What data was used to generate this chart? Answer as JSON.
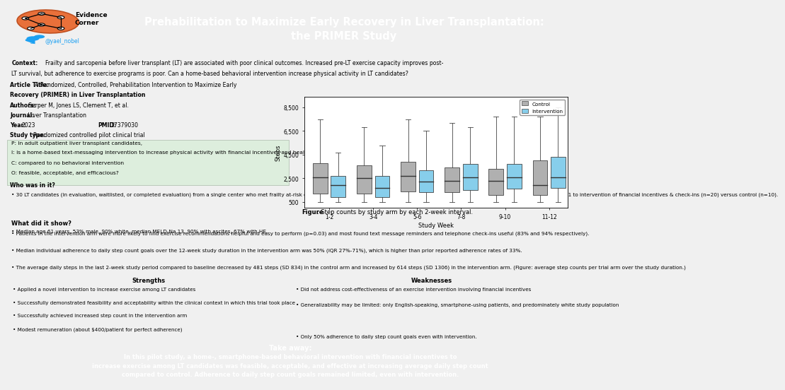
{
  "title": "Prehabilitation to Maximize Early Recovery in Liver Transplantation:\nthe PRIMER Study",
  "header_bg": "#2e6b8a",
  "context_text": "Context: Frailty and sarcopenia before liver transplant (LT) are associated with poor clinical outcomes. Increased pre-LT exercise capacity improves post-LT survival, but adherence to exercise programs is poor. Can a home-based behavioral intervention increase physical activity in LT candidates?",
  "pico_p": "P: In adult outpatient liver transplant candidates,",
  "pico_i": "I: is a home-based text-messaging intervention to increase physical activity with financial incentives and health engagement messages",
  "pico_c": "C: compared to no behavioral intervention",
  "pico_o": "O: feasible, acceptable, and efficacious?",
  "who_header": "Who was in it?",
  "who_bullets": [
    "30 LT candidates (in evaluation, waitlisted, or completed evaluation) from a single center who met frailty at-risk criteria, were English-speaking,  were smart phone users and had a MELD-Na ≤ 25 were randomized 2:1 to intervention of financial incentives & check-ins (n=20) versus control (n=10).",
    "Median age 61 years, 53% male, 90% white, median MELD-Na 13, 90% with ascites, 67% with HE."
  ],
  "what_header": "What did it show?",
  "what_bullets": [
    "Patients in the intervention arm were more likely to find exercise recommendations helpful and easy to perform (p=0.03) and most found text message reminders and telephone check-ins useful (83% and 94% respectively).",
    "Median individual adherence to daily step count goals over the 12-week study duration in the intervention arm was 50% (IQR 27%-71%), which is higher than prior reported adherence rates of 33%.",
    "The average daily steps in the last 2-week study period compared to baseline decreased by 481 steps (SD 834) in the control arm and increased by 614 steps (SD 1306) in the intervention arm. (Figure: average step counts per trial arm over the study duration.)"
  ],
  "strengths_header": "Strengths",
  "strengths_bullets": [
    "Applied a novel intervention to increase exercise among LT candidates",
    "Successfully demonstrated feasibility and acceptability within the clinical context in which this trial took place",
    "Successfully achieved increased step count in the intervention arm",
    "Modest remuneration (about $400/patient for perfect adherence)"
  ],
  "weaknesses_header": "Weaknesses",
  "weaknesses_bullets": [
    "Did not address cost-effectiveness of an exercise intervention involving financial incentives",
    "Generalizability may be limited: only English-speaking, smartphone-using patients, and predominately white study population",
    "Only 50% adherence to daily step count goals even with intervention."
  ],
  "takeaway_header": "Take away:",
  "takeaway_text": "In this pilot study, a home-, smartphone-based behavioral intervention with financial incentives to\nincrease exercise among LT candidates was feasible, acceptable, and effective at increasing average daily step count\ncompared to control. Adherence to daily step count goals remained limited, even with intervention.",
  "takeaway_bg": "#2e6b8a",
  "figure_caption_bold": "Figure",
  "figure_caption_rest": ": Step counts by study arm by each 2-week interval.",
  "box_weeks": [
    "1-2",
    "3-4",
    "5-6",
    "7-8",
    "9-10",
    "11-12"
  ],
  "control_boxes": {
    "whisker_low": [
      500,
      500,
      500,
      500,
      500,
      500
    ],
    "q1": [
      1200,
      1200,
      1400,
      1300,
      1100,
      1100
    ],
    "median": [
      2600,
      2500,
      2700,
      2300,
      2300,
      1900
    ],
    "q3": [
      3800,
      3600,
      3900,
      3400,
      3300,
      4000
    ],
    "whisker_high": [
      7500,
      6800,
      7500,
      7200,
      7700,
      7700
    ]
  },
  "intervention_boxes": {
    "whisker_low": [
      500,
      500,
      500,
      500,
      500,
      500
    ],
    "q1": [
      900,
      900,
      1300,
      1500,
      1600,
      1700
    ],
    "median": [
      1900,
      1700,
      2200,
      2600,
      2600,
      2600
    ],
    "q3": [
      2700,
      2700,
      3200,
      3700,
      3700,
      4300
    ],
    "whisker_high": [
      4700,
      5300,
      6500,
      6800,
      7700,
      8500
    ]
  },
  "control_color": "#b0b0b0",
  "intervention_color": "#87ceeb",
  "ylabel": "Steps",
  "xlabel": "Study Week",
  "yticks": [
    500,
    2500,
    4500,
    6500,
    8500
  ],
  "ytick_labels": [
    "500",
    "2,500",
    "4,500",
    "6,500",
    "8,500"
  ]
}
